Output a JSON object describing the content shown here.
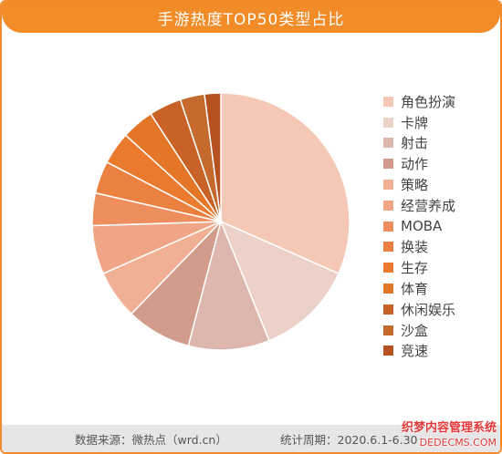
{
  "chart_data": {
    "type": "pie",
    "title": "手游热度TOP50类型占比",
    "categories": [
      "角色扮演",
      "卡牌",
      "射击",
      "动作",
      "策略",
      "经营养成",
      "MOBA",
      "换装",
      "生存",
      "体育",
      "休闲娱乐",
      "沙盒",
      "竞速"
    ],
    "values": [
      15.5,
      6,
      5,
      4,
      3,
      3,
      2,
      2,
      2,
      2,
      2,
      1.5,
      1
    ],
    "colors": [
      "#f4c8b4",
      "#ebd1c8",
      "#ddb7ad",
      "#d29c8c",
      "#f1b094",
      "#efa586",
      "#ee8e5e",
      "#eb8140",
      "#ea7a2d",
      "#e47628",
      "#c86227",
      "#c56a2d",
      "#b55220"
    ],
    "legend_position": "right"
  },
  "footer": {
    "source": "数据来源：微热点（wrd.cn）",
    "period": "统计周期：2020.6.1-6.30"
  },
  "watermark": {
    "line1": "织梦内容管理系统",
    "line2": "DEDECMS.COM"
  }
}
